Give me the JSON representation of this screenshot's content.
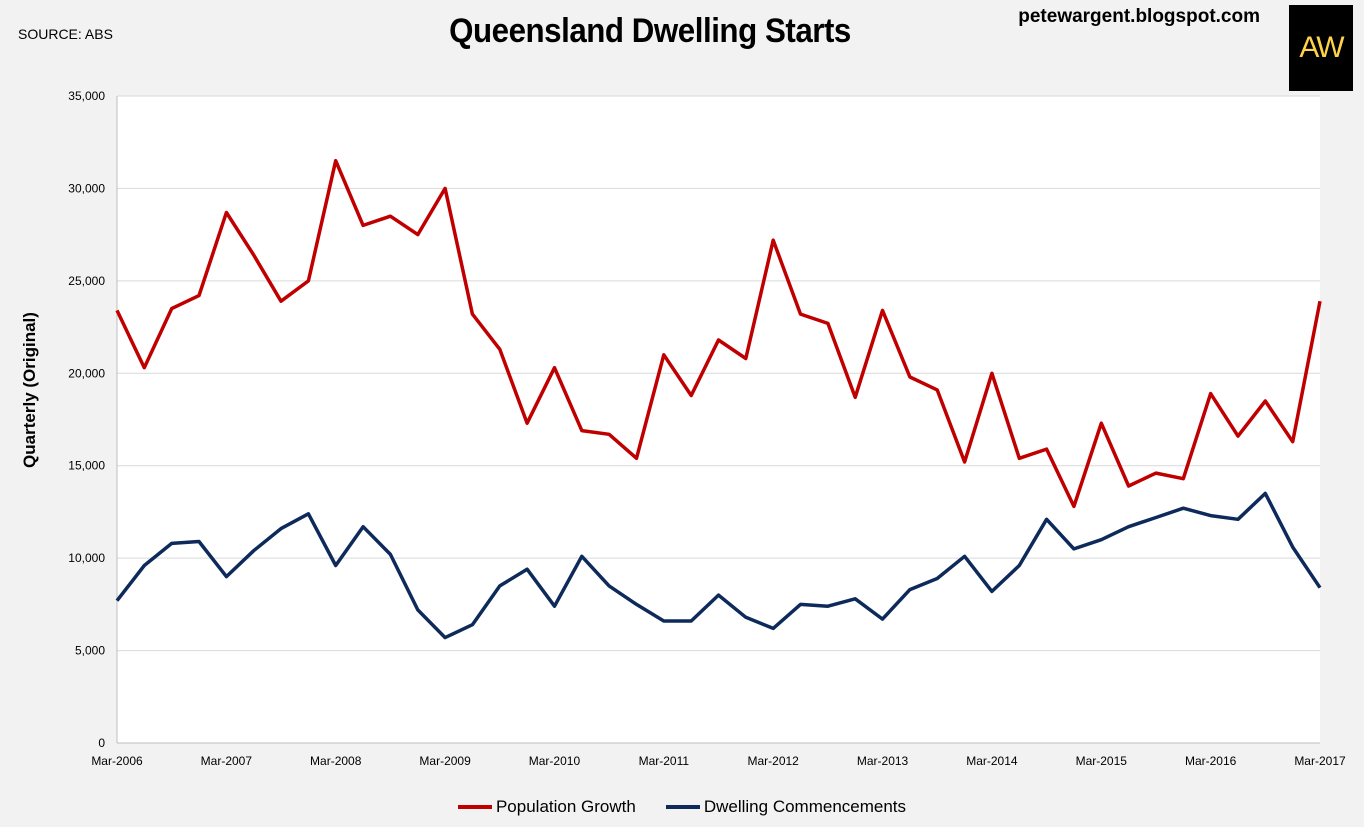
{
  "header": {
    "source": "SOURCE: ABS",
    "blog": "petewargent.blogspot.com",
    "logo_text": "AW"
  },
  "colors": {
    "population": "#c00000",
    "dwelling": "#0d2a5a",
    "grid": "#d9d9d9",
    "plot_bg": "#ffffff"
  },
  "chart_data": {
    "type": "line",
    "title": "Queensland Dwelling Starts",
    "xlabel": "",
    "ylabel": "Quarterly (Original)",
    "ylim": [
      0,
      35000
    ],
    "yticks": [
      0,
      5000,
      10000,
      15000,
      20000,
      25000,
      30000,
      35000
    ],
    "ytick_labels": [
      "0",
      "5,000",
      "10,000",
      "15,000",
      "20,000",
      "25,000",
      "30,000",
      "35,000"
    ],
    "grid": true,
    "legend_position": "bottom",
    "x_tick_labels": [
      "Mar-2006",
      "Mar-2007",
      "Mar-2008",
      "Mar-2009",
      "Mar-2010",
      "Mar-2011",
      "Mar-2012",
      "Mar-2013",
      "Mar-2014",
      "Mar-2015",
      "Mar-2016",
      "Mar-2017"
    ],
    "x_tick_every": 4,
    "n_points": 45,
    "series": [
      {
        "name": "Population Growth",
        "values": [
          23400,
          20300,
          23500,
          24200,
          28700,
          26400,
          23900,
          25000,
          31500,
          28000,
          28500,
          27500,
          30000,
          23200,
          21300,
          17300,
          20300,
          16900,
          16700,
          15400,
          21000,
          18800,
          21800,
          20800,
          27200,
          23200,
          22700,
          18700,
          23400,
          19800,
          19100,
          15200,
          20000,
          15400,
          15900,
          12800,
          17300,
          13900,
          14600,
          14300,
          18900,
          16600,
          18500,
          16300,
          23900
        ]
      },
      {
        "name": "Dwelling Commencements",
        "values": [
          7700,
          9600,
          10800,
          10900,
          9000,
          10400,
          11600,
          12400,
          9600,
          11700,
          10200,
          7200,
          5700,
          6400,
          8500,
          9400,
          7400,
          10100,
          8500,
          7500,
          6600,
          6600,
          8000,
          6800,
          6200,
          7500,
          7400,
          7800,
          6700,
          8300,
          8900,
          10100,
          8200,
          9600,
          12100,
          10500,
          11000,
          11700,
          12200,
          12700,
          12300,
          12100,
          13500,
          10600,
          8400
        ]
      }
    ]
  }
}
